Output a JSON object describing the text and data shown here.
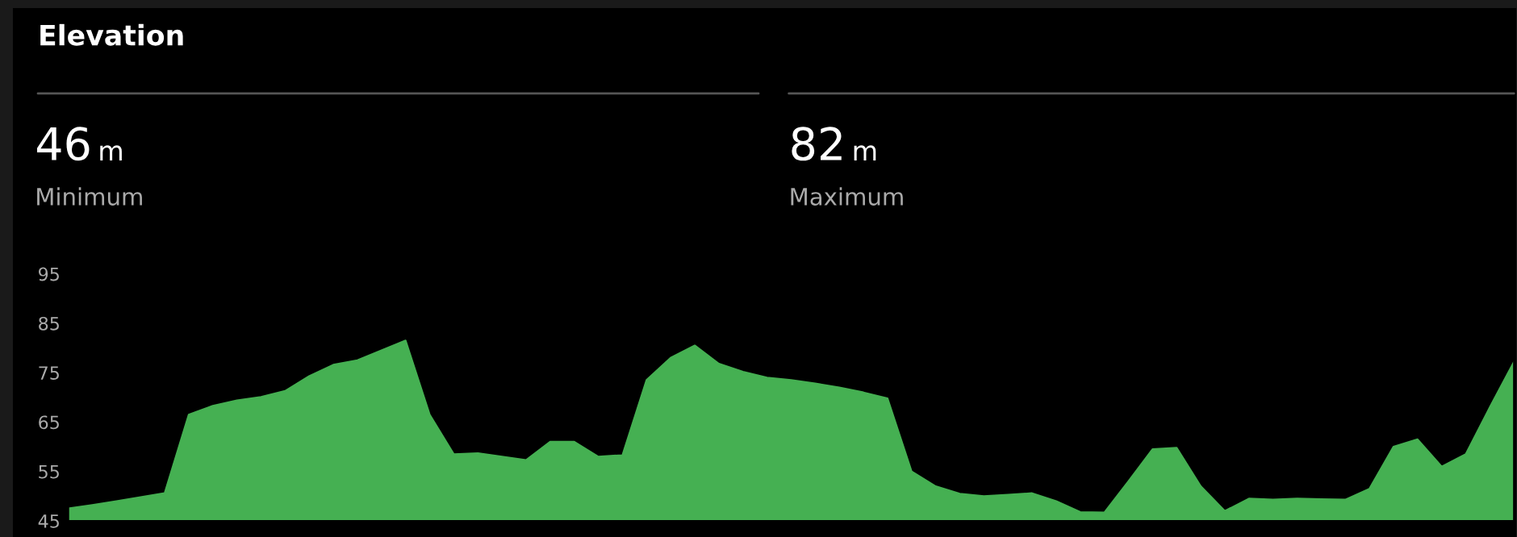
{
  "chart_data": {
    "type": "area",
    "title": "Elevation",
    "annotations": [
      "46 m",
      "Minimum",
      "82 m",
      "Maximum"
    ],
    "categories": [
      null,
      null,
      null,
      null,
      null,
      null,
      null,
      null,
      null,
      null,
      null,
      null,
      null,
      null,
      null,
      null,
      null,
      null,
      null,
      null,
      null,
      null,
      null,
      null,
      null,
      null,
      null,
      null,
      null,
      null,
      null,
      null,
      null,
      null,
      null,
      null,
      null,
      null,
      null,
      null,
      null,
      null,
      null,
      null,
      null,
      null,
      null,
      null,
      null,
      null,
      null,
      null,
      null,
      null,
      null,
      null,
      null,
      null,
      null,
      null,
      null
    ],
    "values": [
      47.5,
      48.2,
      49,
      49.8,
      50.6,
      66.5,
      68.3,
      69.4,
      70.1,
      71.3,
      74.3,
      76.6,
      77.5,
      79.5,
      81.5,
      66.5,
      58.5,
      58.7,
      58,
      57.3,
      61,
      61,
      58,
      58.3,
      73.5,
      78,
      80.5,
      76.8,
      75.2,
      74,
      73.5,
      72.8,
      72,
      71,
      69.8,
      55,
      52,
      50.5,
      50,
      50.3,
      50.6,
      49,
      46.8,
      46.7,
      53,
      59.5,
      59.8,
      52,
      47,
      49.5,
      49.3,
      49.5,
      49.4,
      49.3,
      51.5,
      60,
      61.5,
      56,
      58.5,
      68,
      77.2
    ],
    "color": "#45b052",
    "ylim": [
      45,
      95
    ],
    "yticks": [
      45,
      55,
      65,
      75,
      85,
      95
    ],
    "tick_labels": "y",
    "grid": false,
    "legend": false
  }
}
